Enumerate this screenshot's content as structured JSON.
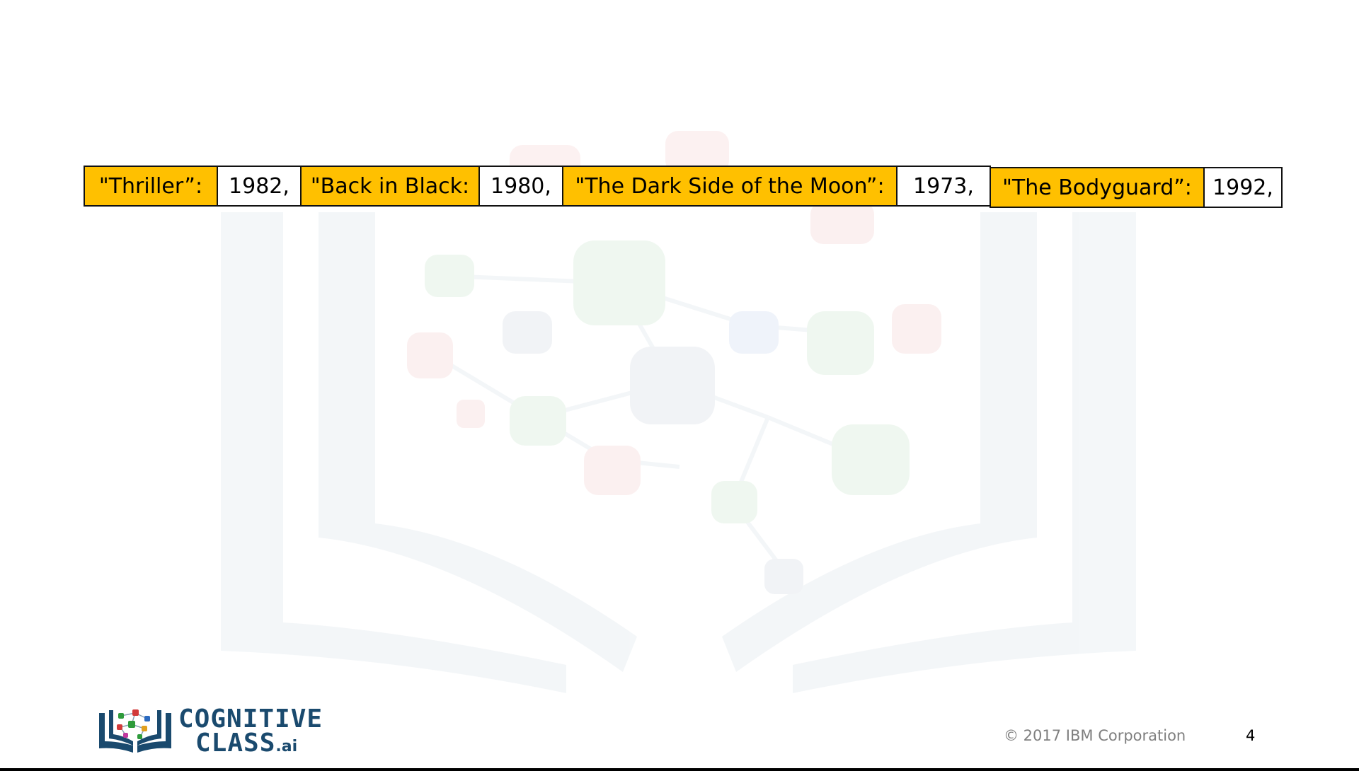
{
  "dictionary": {
    "entries": [
      {
        "key": "\"Thriller”:",
        "value": "1982,"
      },
      {
        "key": "\"Back in Black:",
        "value": "1980,"
      },
      {
        "key": "\"The Dark Side of the Moon”:",
        "value": "1973,"
      },
      {
        "key": "\"The Bodyguard”:",
        "value": "1992,"
      }
    ],
    "key_color": "#FFC000",
    "value_color": "#ffffff"
  },
  "logo": {
    "line1": "COGNITIVE",
    "line2": "CLASS",
    "suffix": ".ai"
  },
  "footer": {
    "copyright": "© 2017 IBM Corporation",
    "slide_number": "4"
  }
}
